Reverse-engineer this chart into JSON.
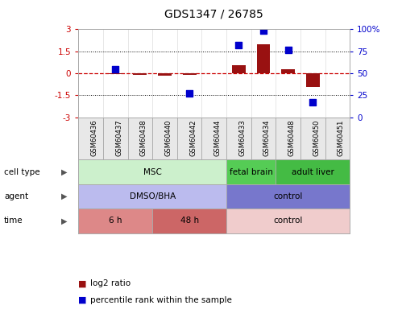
{
  "title": "GDS1347 / 26785",
  "samples": [
    "GSM60436",
    "GSM60437",
    "GSM60438",
    "GSM60440",
    "GSM60442",
    "GSM60444",
    "GSM60433",
    "GSM60434",
    "GSM60448",
    "GSM60450",
    "GSM60451"
  ],
  "log2_ratio": [
    0.0,
    -0.05,
    -0.08,
    -0.15,
    -0.1,
    0.0,
    0.55,
    2.0,
    0.3,
    -0.9,
    0.0
  ],
  "percentile_rank": [
    null,
    55,
    null,
    null,
    27,
    null,
    82,
    99,
    77,
    17,
    null
  ],
  "ylim_left": [
    -3,
    3
  ],
  "ylim_right": [
    0,
    100
  ],
  "yticks_left": [
    -3,
    -1.5,
    0,
    1.5,
    3
  ],
  "yticks_right": [
    0,
    25,
    50,
    75,
    100
  ],
  "dotted_lines": [
    -1.5,
    1.5
  ],
  "bar_color": "#991111",
  "dot_color": "#0000cc",
  "bar_width": 0.55,
  "cell_type_groups": [
    {
      "label": "MSC",
      "start": 0,
      "end": 6,
      "color": "#ccf0cc"
    },
    {
      "label": "fetal brain",
      "start": 6,
      "end": 8,
      "color": "#55cc55"
    },
    {
      "label": "adult liver",
      "start": 8,
      "end": 11,
      "color": "#44bb44"
    }
  ],
  "agent_groups": [
    {
      "label": "DMSO/BHA",
      "start": 0,
      "end": 6,
      "color": "#bbbbee"
    },
    {
      "label": "control",
      "start": 6,
      "end": 11,
      "color": "#7777cc"
    }
  ],
  "time_groups": [
    {
      "label": "6 h",
      "start": 0,
      "end": 3,
      "color": "#dd8888"
    },
    {
      "label": "48 h",
      "start": 3,
      "end": 6,
      "color": "#cc6666"
    },
    {
      "label": "control",
      "start": 6,
      "end": 11,
      "color": "#f0cccc"
    }
  ],
  "legend_items": [
    {
      "label": "log2 ratio",
      "color": "#991111"
    },
    {
      "label": "percentile rank within the sample",
      "color": "#0000cc"
    }
  ],
  "row_labels": [
    "cell type",
    "agent",
    "time"
  ],
  "background_color": "#ffffff"
}
